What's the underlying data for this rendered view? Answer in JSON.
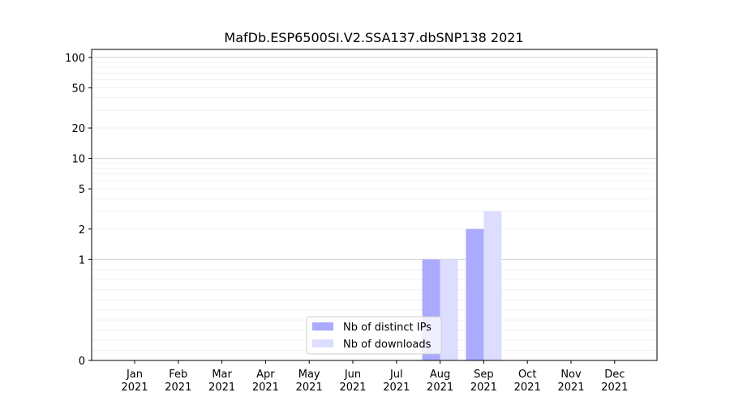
{
  "chart_data": {
    "type": "bar",
    "title": "MafDb.ESP6500SI.V2.SSA137.dbSNP138 2021",
    "xlabel": "",
    "ylabel": "",
    "yscale": "symlog",
    "ylim": [
      0,
      120
    ],
    "yticks": [
      0,
      1,
      2,
      5,
      10,
      20,
      50,
      100
    ],
    "ytick_labels": [
      "0",
      "1",
      "2",
      "5",
      "10",
      "20",
      "50",
      "100"
    ],
    "categories": [
      "Jan\n2021",
      "Feb\n2021",
      "Mar\n2021",
      "Apr\n2021",
      "May\n2021",
      "Jun\n2021",
      "Jul\n2021",
      "Aug\n2021",
      "Sep\n2021",
      "Oct\n2021",
      "Nov\n2021",
      "Dec\n2021"
    ],
    "series": [
      {
        "name": "Nb of distinct IPs",
        "color": "#aaaaff",
        "values": [
          0,
          0,
          0,
          0,
          0,
          0,
          0,
          1,
          2,
          0,
          0,
          0
        ]
      },
      {
        "name": "Nb of downloads",
        "color": "#ddddff",
        "values": [
          0,
          0,
          0,
          0,
          0,
          0,
          0,
          1,
          3,
          0,
          0,
          0
        ]
      }
    ],
    "grid": true,
    "legend_position": "bottom-center"
  }
}
